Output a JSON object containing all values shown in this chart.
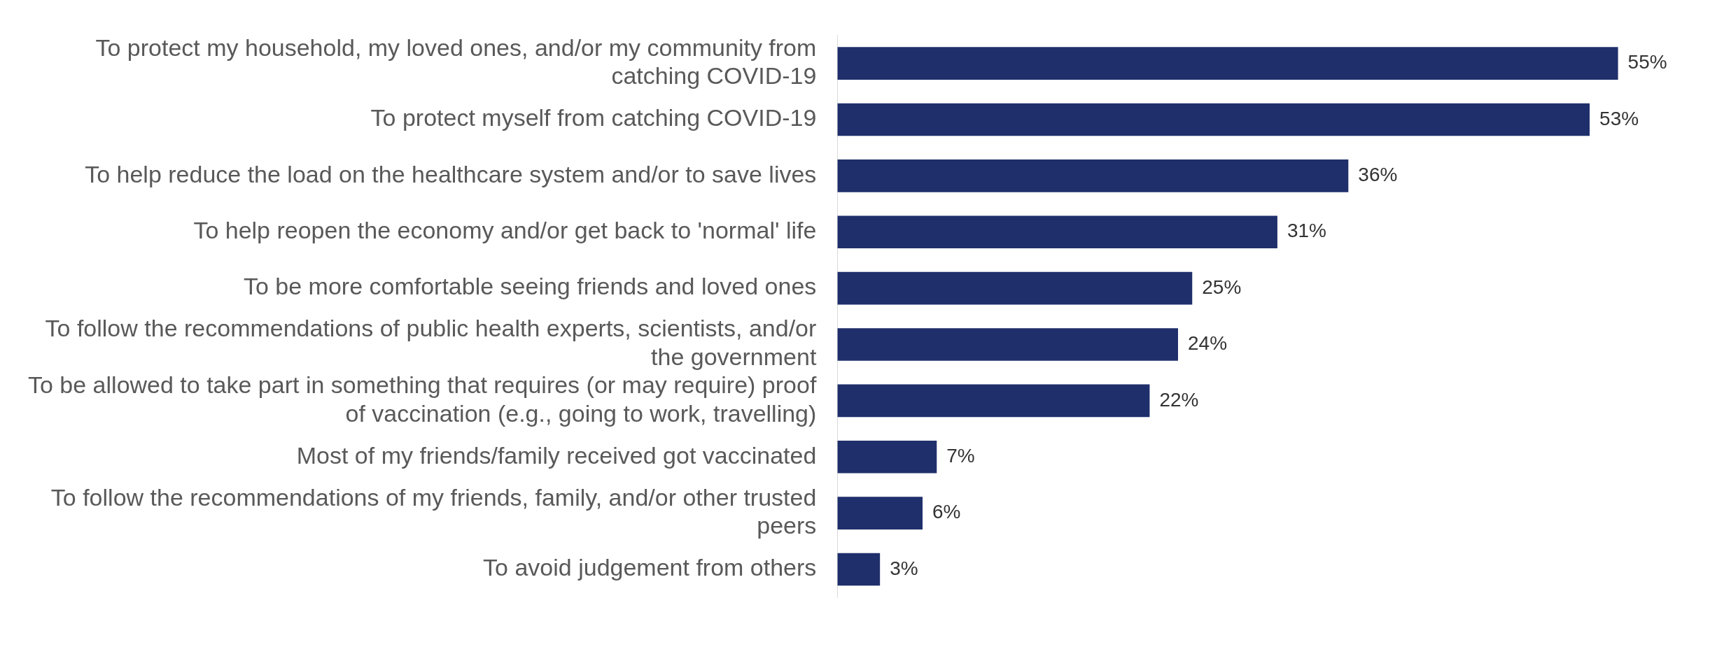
{
  "chart_data": {
    "type": "bar",
    "orientation": "horizontal",
    "categories": [
      "To protect my household, my loved ones, and/or my community from catching COVID-19",
      "To protect myself from catching COVID-19",
      "To help reduce the load on the healthcare system and/or to save lives",
      "To help reopen the economy and/or get back to 'normal' life",
      "To be more comfortable seeing friends and loved ones",
      "To follow the recommendations of public health experts, scientists, and/or the government",
      "To be allowed to take part in something that requires (or may require) proof of vaccination (e.g., going to work, travelling)",
      "Most of my friends/family received got vaccinated",
      "To follow the recommendations of my friends, family, and/or other trusted peers",
      "To avoid judgement from others"
    ],
    "values": [
      55,
      53,
      36,
      31,
      25,
      24,
      22,
      7,
      6,
      3
    ],
    "value_labels": [
      "55%",
      "53%",
      "36%",
      "31%",
      "25%",
      "24%",
      "22%",
      "7%",
      "6%",
      "3%"
    ],
    "color": "#1f2f6b"
  }
}
